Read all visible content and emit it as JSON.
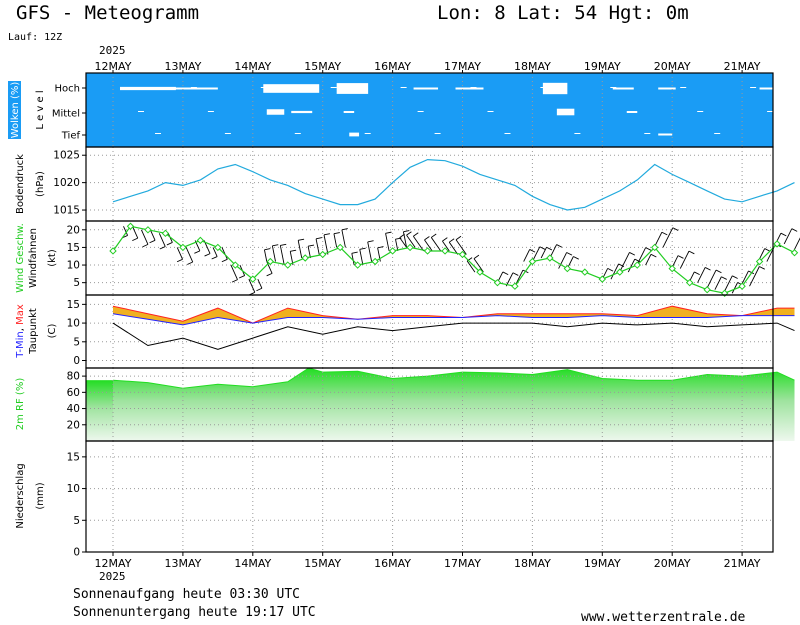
{
  "header": {
    "title": "GFS - Meteogramm",
    "location": "Lon: 8 Lat: 54 Hgt: 0m",
    "run": "Lauf: 12Z",
    "year": "2025",
    "sunrise": "Sonnenaufgang heute 03:30 UTC",
    "sunset": "Sonnenuntergang heute 19:17 UTC",
    "website": "www.wetterzentrale.de"
  },
  "colors": {
    "cloud_bg": "#1a9cf5",
    "pressure": "#22aadd",
    "wind_speed": "#22cc22",
    "t_min": "#2222ff",
    "t_max": "#ff2222",
    "t_range_fill": "#f0b020",
    "dewpoint": "#000000",
    "rh": "#22dd22",
    "grid": "#9a9a9a"
  },
  "chart_data": {
    "type": "line",
    "x_tick_labels": [
      "12MAY",
      "13MAY",
      "14MAY",
      "15MAY",
      "16MAY",
      "17MAY",
      "18MAY",
      "19MAY",
      "20MAY",
      "21MAY"
    ],
    "panels": [
      {
        "id": "clouds",
        "ylabel": "Wolken (%)",
        "level_axis_title": "L e v e l",
        "levels": [
          "Hoch",
          "Mittel",
          "Tief"
        ],
        "clear_patches": [
          {
            "level": "Hoch",
            "t": [
              0.1,
              0.9,
              0.12
            ]
          },
          {
            "level": "Hoch",
            "t": [
              0.8,
              1.5,
              0.06
            ]
          },
          {
            "level": "Hoch",
            "t": [
              2.15,
              2.95,
              0.32
            ]
          },
          {
            "level": "Hoch",
            "t": [
              3.2,
              3.65,
              0.4
            ]
          },
          {
            "level": "Hoch",
            "t": [
              4.3,
              4.65,
              0.05
            ]
          },
          {
            "level": "Hoch",
            "t": [
              4.9,
              5.3,
              0.06
            ]
          },
          {
            "level": "Hoch",
            "t": [
              6.15,
              6.5,
              0.42
            ]
          },
          {
            "level": "Hoch",
            "t": [
              7.15,
              7.45,
              0.07
            ]
          },
          {
            "level": "Hoch",
            "t": [
              7.8,
              8.05,
              0.05
            ]
          },
          {
            "level": "Hoch",
            "t": [
              9.25,
              9.7,
              0.06
            ]
          },
          {
            "level": "Mittel",
            "t": [
              2.2,
              2.45,
              0.25
            ]
          },
          {
            "level": "Mittel",
            "t": [
              2.55,
              2.85,
              0.1
            ]
          },
          {
            "level": "Mittel",
            "t": [
              3.3,
              3.45,
              0.05
            ]
          },
          {
            "level": "Mittel",
            "t": [
              6.35,
              6.6,
              0.3
            ]
          },
          {
            "level": "Mittel",
            "t": [
              7.35,
              7.5,
              0.05
            ]
          },
          {
            "level": "Tief",
            "t": [
              3.38,
              3.52,
              0.18
            ]
          },
          {
            "level": "Tief",
            "t": [
              7.8,
              8.0,
              0.05
            ]
          }
        ]
      },
      {
        "id": "pressure",
        "ylabel": "Bodendruck",
        "unit": "(hPa)",
        "yticks": [
          1015,
          1020,
          1025
        ],
        "ylim": [
          1013,
          1026.5
        ],
        "t": [
          0,
          0.25,
          0.5,
          0.75,
          1,
          1.25,
          1.5,
          1.75,
          2,
          2.25,
          2.5,
          2.75,
          3,
          3.25,
          3.5,
          3.75,
          4,
          4.25,
          4.5,
          4.75,
          5,
          5.25,
          5.5,
          5.75,
          6,
          6.25,
          6.5,
          6.75,
          7,
          7.25,
          7.5,
          7.75,
          8,
          8.25,
          8.5,
          8.75,
          9,
          9.25,
          9.5,
          9.75
        ],
        "values": [
          1016.5,
          1017.5,
          1018.5,
          1020,
          1019.5,
          1020.5,
          1022.5,
          1023.3,
          1022,
          1020.5,
          1019.5,
          1018,
          1017,
          1016,
          1016,
          1017,
          1020,
          1022.8,
          1024.2,
          1024,
          1023,
          1021.5,
          1020.5,
          1019.5,
          1017.5,
          1016,
          1015,
          1015.5,
          1017,
          1018.5,
          1020.5,
          1023.3,
          1021.5,
          1020,
          1018.5,
          1017,
          1016.5,
          1017.5,
          1018.5,
          1020
        ]
      },
      {
        "id": "wind",
        "ylabel": "Wind Geschw.",
        "ylabel2": "Windfahnen",
        "unit": "(kt)",
        "yticks": [
          5,
          10,
          15,
          20
        ],
        "ylim": [
          1.5,
          22.5
        ],
        "t": [
          0,
          0.25,
          0.5,
          0.75,
          1,
          1.25,
          1.5,
          1.75,
          2,
          2.25,
          2.5,
          2.75,
          3,
          3.25,
          3.5,
          3.75,
          4,
          4.25,
          4.5,
          4.75,
          5,
          5.25,
          5.5,
          5.75,
          6,
          6.25,
          6.5,
          6.75,
          7,
          7.25,
          7.5,
          7.75,
          8,
          8.25,
          8.5,
          8.75,
          9,
          9.25,
          9.5,
          9.75
        ],
        "values": [
          14,
          21,
          20,
          19,
          15,
          17,
          15,
          10,
          6,
          11,
          10,
          12,
          13,
          15,
          10,
          11,
          14,
          15,
          14,
          14,
          13,
          8,
          5,
          4,
          11,
          12,
          9,
          8,
          6,
          8,
          10,
          15,
          9,
          5,
          3,
          2,
          4,
          11,
          16,
          13.5
        ],
        "barbs": [
          {
            "t": [
              0.15,
              2.2
            ],
            "dir": "S",
            "len": [
              10,
              16
            ]
          },
          {
            "t": [
              2.2,
              4.2
            ],
            "dir": "N",
            "len": [
              12,
              20
            ]
          },
          {
            "t": [
              4.2,
              5.3
            ],
            "dir": "NW",
            "len": [
              12,
              18
            ]
          },
          {
            "t": [
              5.5,
              6.5
            ],
            "dir": "NE",
            "len": [
              12,
              18
            ]
          },
          {
            "t": [
              7.0,
              9.85
            ],
            "dir": "NE",
            "len": [
              12,
              22
            ]
          }
        ]
      },
      {
        "id": "temperature",
        "ylabel": "T-Min, Max",
        "ylabel_min": "T-Min",
        "ylabel_sep": ",",
        "ylabel_max": "Max",
        "ylabel2": "Taupunkt",
        "unit": "(C)",
        "yticks": [
          0,
          5,
          10,
          15
        ],
        "ylim": [
          -2,
          17.5
        ],
        "t": [
          0,
          0.5,
          1,
          1.5,
          2,
          2.5,
          3,
          3.5,
          4,
          4.5,
          5,
          5.5,
          6,
          6.5,
          7,
          7.5,
          8,
          8.5,
          9,
          9.5,
          9.75
        ],
        "t_min": [
          12.5,
          11,
          9.5,
          11.5,
          10,
          11.5,
          11.5,
          11,
          11.5,
          11.5,
          11.5,
          12,
          11.5,
          11.5,
          12,
          11.5,
          11.5,
          11.5,
          12,
          12,
          12
        ],
        "t_max": [
          14.5,
          12.5,
          10.5,
          14,
          10,
          14,
          12,
          11,
          12,
          12,
          11.5,
          12.5,
          12.5,
          12.5,
          12.5,
          12,
          14.5,
          12.5,
          12,
          14,
          14
        ],
        "dewpoint": [
          10,
          4,
          6,
          3,
          6,
          9,
          7,
          9,
          8,
          9,
          10,
          10,
          10,
          9,
          10,
          9.5,
          10,
          9,
          9.5,
          10,
          8
        ]
      },
      {
        "id": "rh",
        "ylabel": "2m RF (%)",
        "yticks": [
          20,
          40,
          60,
          80
        ],
        "ylim": [
          0,
          90
        ],
        "t": [
          0,
          0.5,
          1,
          1.5,
          2,
          2.5,
          2.8,
          3,
          3.5,
          4,
          4.5,
          5,
          5.5,
          6,
          6.5,
          7,
          7.5,
          8,
          8.5,
          9,
          9.5,
          9.75
        ],
        "values": [
          75,
          72,
          65,
          70,
          67,
          73,
          90,
          85,
          86,
          77,
          80,
          85,
          84,
          82,
          88,
          77,
          75,
          75,
          82,
          80,
          85,
          75
        ]
      },
      {
        "id": "precip",
        "ylabel": "Niederschlag",
        "unit": "(mm)",
        "yticks": [
          0,
          5,
          10,
          15
        ],
        "ylim": [
          0,
          17.5
        ],
        "values": []
      }
    ]
  }
}
